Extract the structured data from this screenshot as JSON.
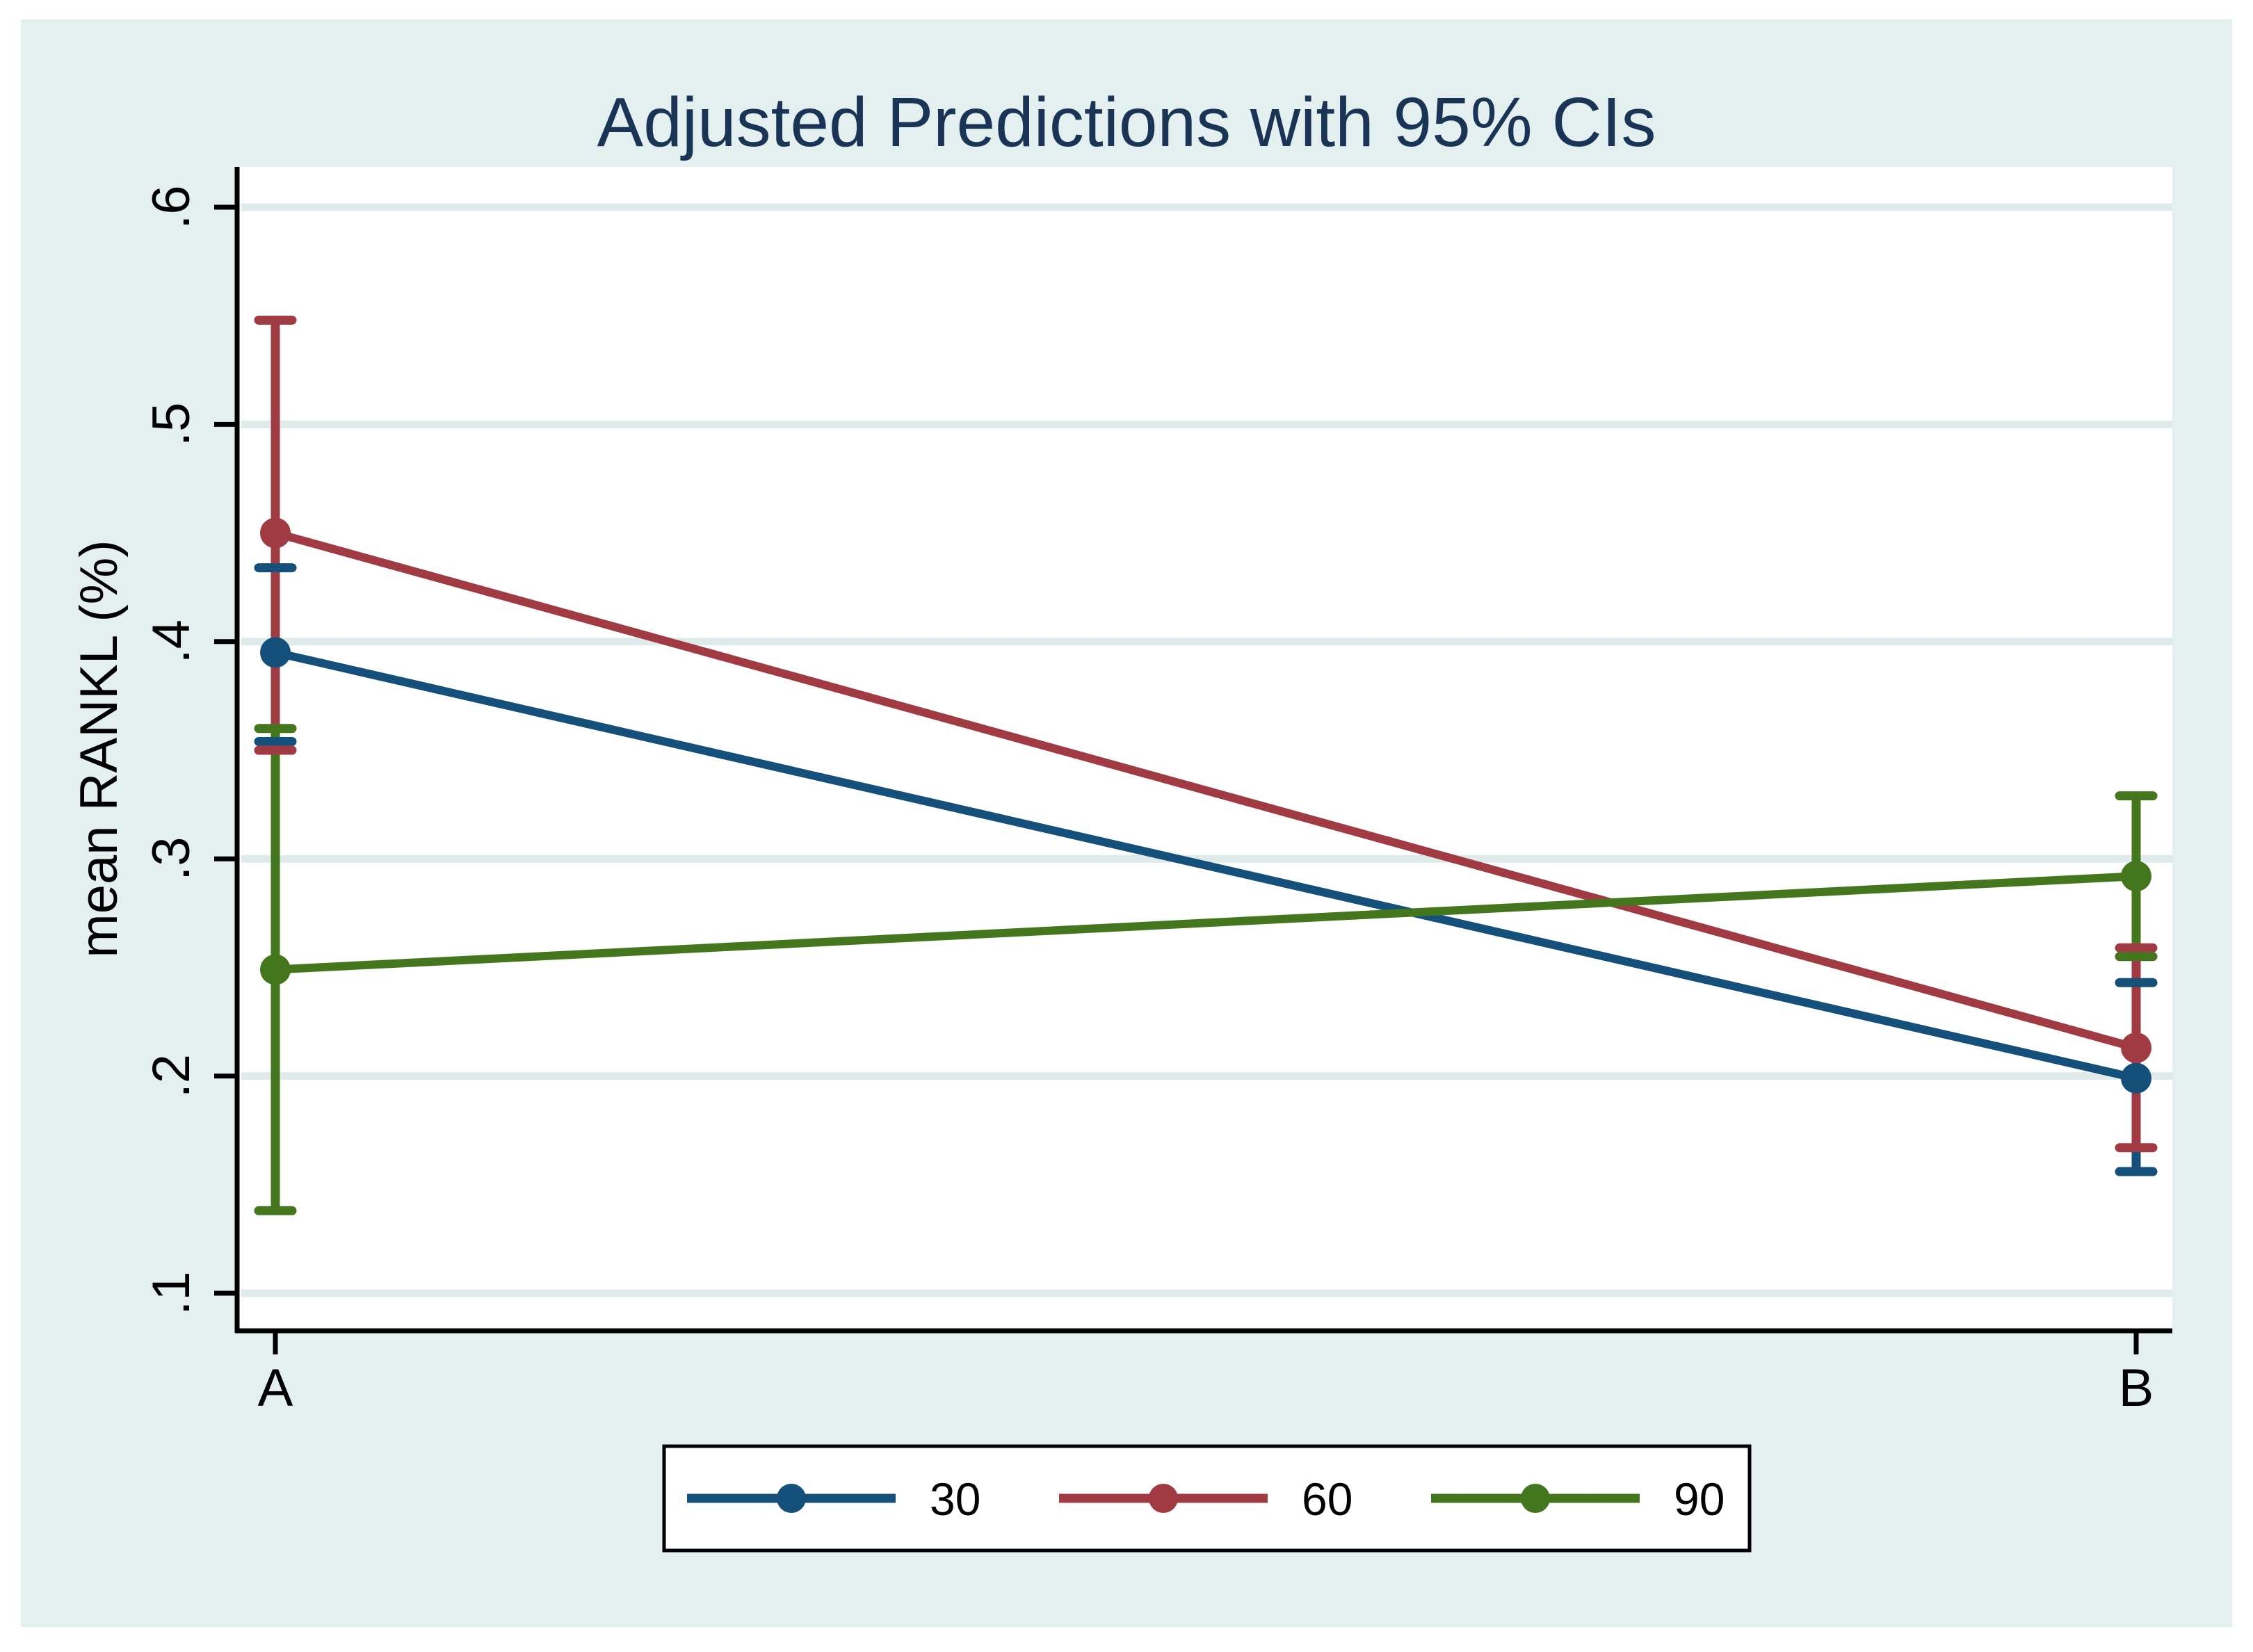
{
  "title": "Adjusted Predictions with 95% CIs",
  "colors": {
    "canvas_background": "#e4eff0",
    "plot_background": "#ffffff",
    "gridline": "#dfeaeb",
    "axis": "#000000",
    "title_text": "#1a3456",
    "tick_text": "#000000",
    "legend_border": "#000000",
    "legend_background": "#ffffff",
    "series_navy": "#14507a",
    "series_maroon": "#a03b44",
    "series_green": "#44771d"
  },
  "chart_data": {
    "type": "line",
    "title": "Adjusted Predictions with 95% CIs",
    "xlabel": "",
    "ylabel": "mean RANKL (%)",
    "categories": [
      "A",
      "B"
    ],
    "ylim": [
      0.1,
      0.6
    ],
    "ytick_values": [
      0.6,
      0.5,
      0.4,
      0.3,
      0.2,
      0.1
    ],
    "ytick_labels": [
      ".6",
      ".5",
      ".4",
      ".3",
      ".2",
      ".1"
    ],
    "grid": true,
    "legend_position": "bottom-center",
    "error_bars": "95% CI",
    "series": [
      {
        "name": "30",
        "color": "#14507a",
        "means": [
          0.395,
          0.199
        ],
        "ci_low": [
          0.354,
          0.156
        ],
        "ci_high": [
          0.434,
          0.243
        ]
      },
      {
        "name": "60",
        "color": "#a03b44",
        "means": [
          0.45,
          0.213
        ],
        "ci_low": [
          0.35,
          0.167
        ],
        "ci_high": [
          0.548,
          0.259
        ]
      },
      {
        "name": "90",
        "color": "#44771d",
        "means": [
          0.249,
          0.292
        ],
        "ci_low": [
          0.138,
          0.255
        ],
        "ci_high": [
          0.36,
          0.329
        ]
      }
    ]
  }
}
